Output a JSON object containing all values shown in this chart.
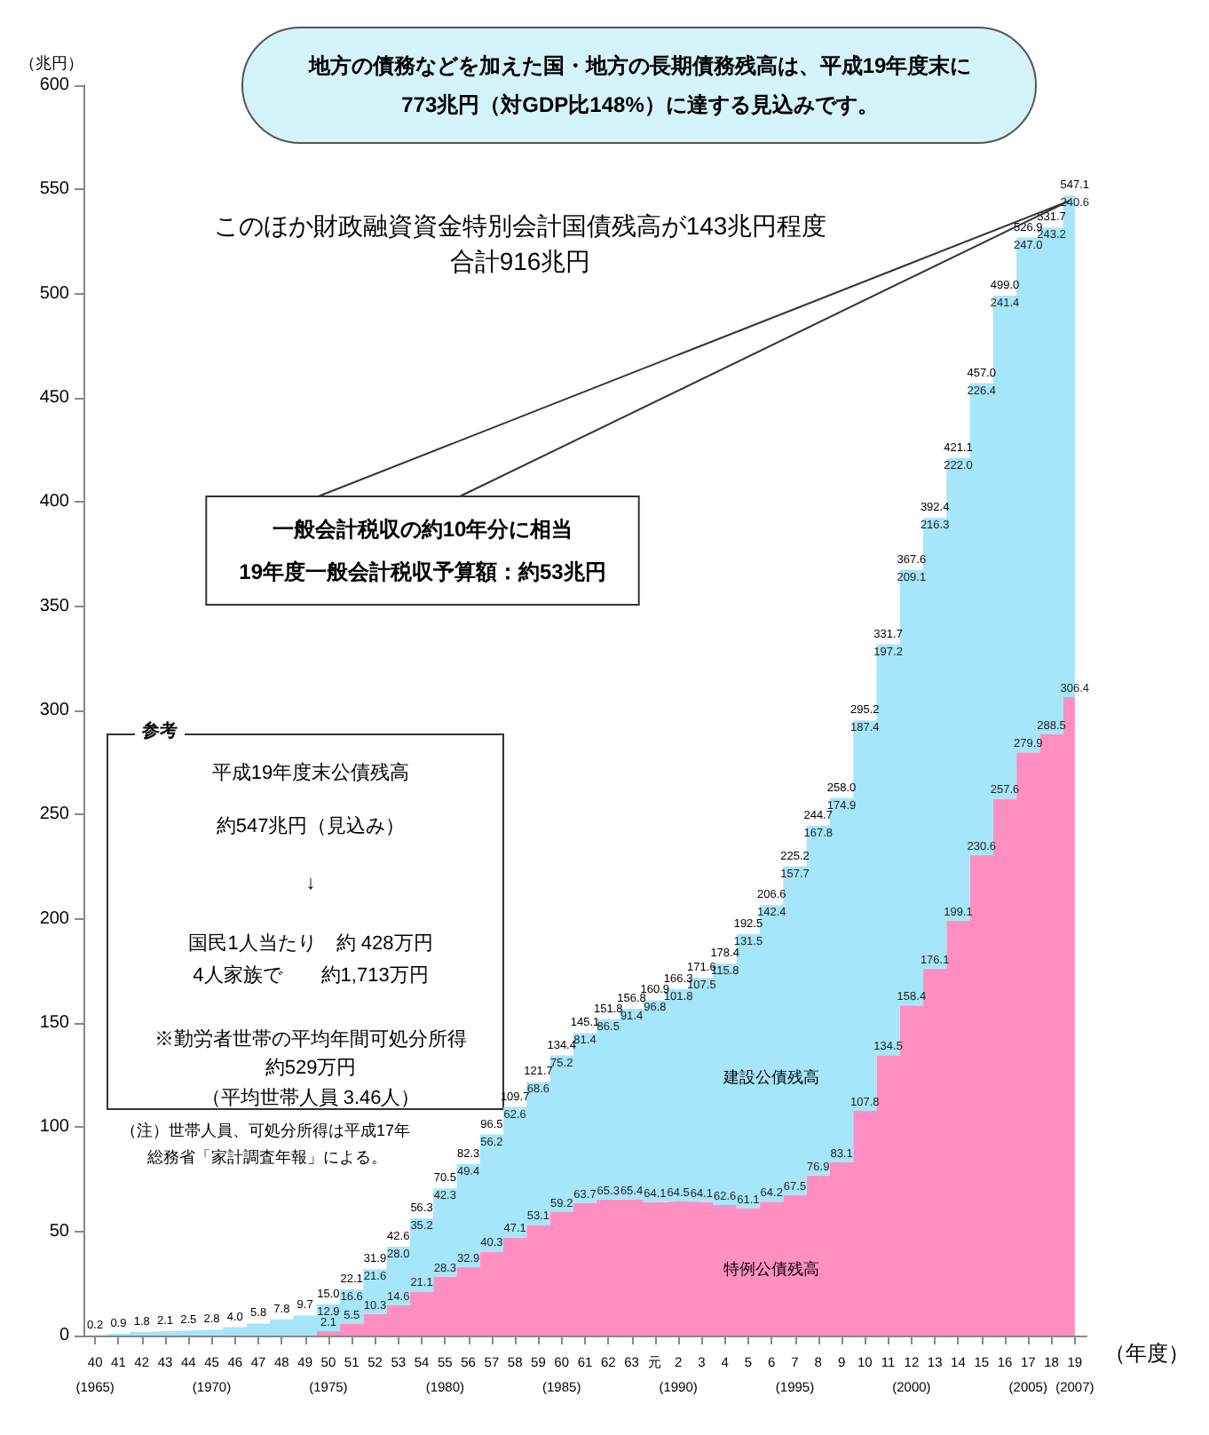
{
  "chart_data": {
    "type": "area",
    "stacked": true,
    "ylabel": "（兆円）",
    "xlabel": "（年度）",
    "categories": [
      "40\n(1965)",
      "41",
      "42",
      "43",
      "44",
      "45\n(1970)",
      "46",
      "47",
      "48",
      "49",
      "50\n(1975)",
      "51",
      "52",
      "53",
      "54",
      "55\n(1980)",
      "56",
      "57",
      "58",
      "59",
      "60\n(1985)",
      "61",
      "62",
      "63",
      "元",
      "2\n(1990)",
      "3",
      "4",
      "5",
      "6",
      "7\n(1995)",
      "8",
      "9",
      "10",
      "11",
      "12\n(2000)",
      "13",
      "14",
      "15",
      "16",
      "17\n(2005)",
      "18",
      "19\n(2007)"
    ],
    "series": [
      {
        "name": "特例公債残高",
        "color": "#ff8fc0",
        "values": [
          0,
          0,
          0,
          0,
          0,
          0,
          0,
          0,
          0,
          0,
          2.1,
          5.5,
          10.3,
          14.6,
          21.1,
          28.3,
          32.9,
          40.3,
          47.1,
          53.1,
          59.2,
          63.7,
          65.3,
          65.4,
          64.1,
          64.5,
          64.1,
          62.6,
          61.1,
          64.2,
          67.5,
          76.9,
          83.1,
          107.8,
          134.5,
          158.4,
          176.1,
          199.1,
          230.6,
          257.6,
          279.9,
          288.5,
          306.4
        ],
        "value_labels": [
          null,
          null,
          null,
          null,
          null,
          null,
          null,
          null,
          null,
          null,
          "2.1",
          "5.5",
          "10.3",
          "14.6",
          "21.1",
          "28.3",
          "32.9",
          "40.3",
          "47.1",
          "53.1",
          "59.2",
          "63.7",
          "65.3",
          "65.4",
          "64.1",
          "64.5",
          "64.1",
          "62.6",
          "61.1",
          "64.2",
          "67.5",
          "76.9",
          "83.1",
          "107.8",
          "134.5",
          "158.4",
          "176.1",
          "199.1",
          "230.6",
          "257.6",
          "279.9",
          "288.5",
          "306.4"
        ]
      },
      {
        "name": "建設公債残高",
        "color": "#a6e6fa",
        "values": [
          0.2,
          0.9,
          1.8,
          2.1,
          2.5,
          2.8,
          4.0,
          5.8,
          7.8,
          9.7,
          12.9,
          16.6,
          21.6,
          28.0,
          35.2,
          42.3,
          49.4,
          56.2,
          62.6,
          68.6,
          75.2,
          81.4,
          86.5,
          91.4,
          96.8,
          101.8,
          107.5,
          115.8,
          131.5,
          142.4,
          157.7,
          167.8,
          174.9,
          187.4,
          197.2,
          209.1,
          216.3,
          222.0,
          226.4,
          241.4,
          247.0,
          243.2,
          240.6
        ],
        "value_labels": [
          null,
          null,
          null,
          null,
          null,
          null,
          null,
          null,
          null,
          null,
          "12.9",
          "16.6",
          "21.6",
          "28.0",
          "35.2",
          "42.3",
          "49.4",
          "56.2",
          "62.6",
          "68.6",
          "75.2",
          "81.4",
          "86.5",
          "91.4",
          "96.8",
          "101.8",
          "107.5",
          "115.8",
          "131.5",
          "142.4",
          "157.7",
          "167.8",
          "174.9",
          "187.4",
          "197.2",
          "209.1",
          "216.3",
          "222.0",
          "226.4",
          "241.4",
          "247.0",
          "243.2",
          "240.6"
        ]
      }
    ],
    "totals": [
      "0.2",
      "0.9",
      "1.8",
      "2.1",
      "2.5",
      "2.8",
      "4.0",
      "5.8",
      "7.8",
      "9.7",
      "15.0",
      "22.1",
      "31.9",
      "42.6",
      "56.3",
      "70.5",
      "82.3",
      "96.5",
      "109.7",
      "121.7",
      "134.4",
      "145.1",
      "151.8",
      "156.8",
      "160.9",
      "166.3",
      "171.6",
      "178.4",
      "192.5",
      "206.6",
      "225.2",
      "244.7",
      "258.0",
      "295.2",
      "331.7",
      "367.6",
      "392.4",
      "421.1",
      "457.0",
      "499.0",
      "526.9",
      "531.7",
      "547.1"
    ],
    "ylim": [
      0,
      600
    ],
    "yticks": [
      0,
      50,
      100,
      150,
      200,
      250,
      300,
      350,
      400,
      450,
      500,
      550,
      600
    ],
    "annotations": [
      "地方の債務などを加えた国・地方の長期債務残高は、平成19年度末に\n773兆円（対GDP比148%）に達する見込みです。",
      "このほか財政融資資金特別会計国債残高が143兆円程度",
      "合計916兆円",
      {
        "text": "一般会計税収の約10年分に相当\n19年度一般会計税収予算額：約53兆円",
        "x": "19\n(2007)",
        "y": 547.1
      },
      "参考",
      "平成19年度末公債残高",
      "約547兆円（見込み）",
      "↓",
      "国民1人当たり　約 428万円",
      "4人家族で　　約1,713万円",
      "※勤労者世帯の平均年間可処分所得",
      "約529万円",
      "（平均世帯人員 3.46人）",
      "（注）世帯人員、可処分所得は平成17年",
      "総務省「家計調査年報」による。"
    ]
  }
}
